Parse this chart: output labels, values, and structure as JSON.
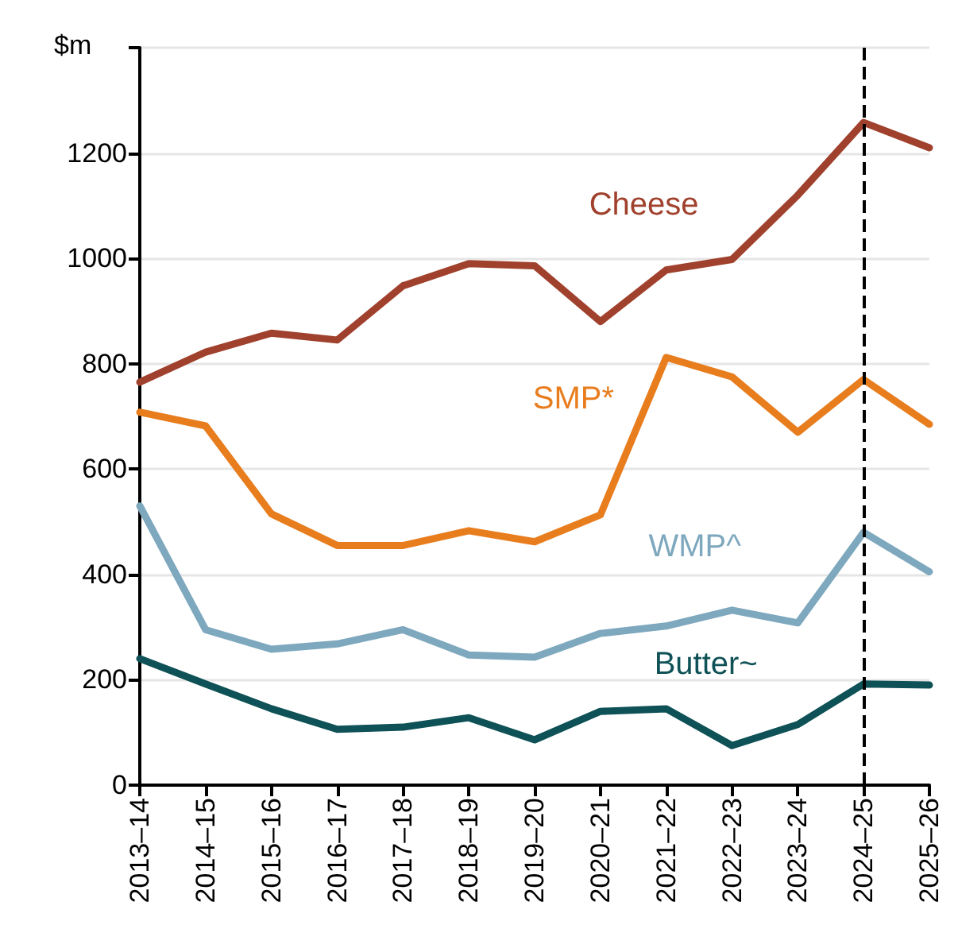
{
  "chart_data": {
    "type": "line",
    "ylabel": "$m",
    "categories": [
      "2013–14",
      "2014–15",
      "2015–16",
      "2016–17",
      "2017–18",
      "2018–19",
      "2019–20",
      "2020–21",
      "2021–22",
      "2022–23",
      "2023–24",
      "2024–25",
      "2025–26"
    ],
    "series": [
      {
        "name": "Cheese",
        "color": "#a0412d",
        "values": [
          765,
          822,
          858,
          845,
          948,
          990,
          986,
          880,
          978,
          998,
          1120,
          1258,
          1210
        ]
      },
      {
        "name": "SMP*",
        "color": "#e87d1e",
        "values": [
          708,
          682,
          515,
          455,
          455,
          483,
          462,
          513,
          812,
          775,
          670,
          770,
          685
        ]
      },
      {
        "name": "WMP^",
        "color": "#7ea8be",
        "values": [
          530,
          295,
          258,
          268,
          295,
          247,
          243,
          288,
          302,
          332,
          308,
          480,
          405
        ]
      },
      {
        "name": "Butter~",
        "color": "#0e5156",
        "values": [
          240,
          192,
          145,
          106,
          110,
          128,
          86,
          140,
          145,
          75,
          115,
          192,
          190
        ]
      }
    ],
    "ref_lines": [
      {
        "axis": "x",
        "value": "2024–25",
        "line_style": "dashed",
        "color": "#000000"
      }
    ],
    "ylim": [
      0,
      1400
    ],
    "yticks": [
      0,
      200,
      400,
      600,
      800,
      1000,
      1200,
      {
        "value": 1400,
        "label": null
      }
    ],
    "grid": "y",
    "marker": "none",
    "line_style": "solid"
  }
}
